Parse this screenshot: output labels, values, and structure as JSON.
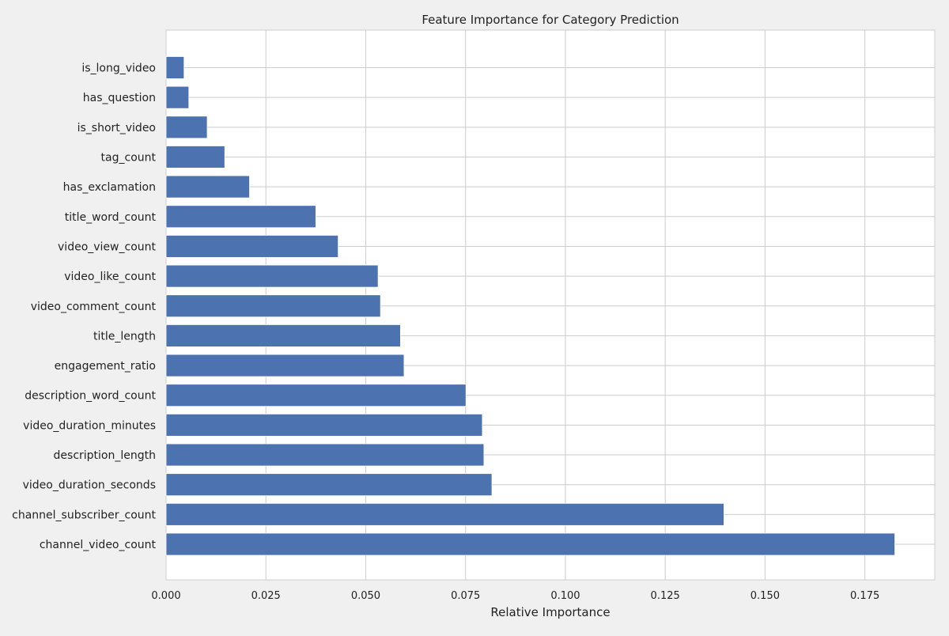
{
  "chart_data": {
    "type": "bar",
    "orientation": "horizontal",
    "title": "Feature Importance for Category Prediction",
    "xlabel": "Relative Importance",
    "ylabel": "",
    "xlim": [
      0,
      0.1925
    ],
    "x_ticks": [
      "0.000",
      "0.025",
      "0.050",
      "0.075",
      "0.100",
      "0.125",
      "0.150",
      "0.175"
    ],
    "grid": true,
    "legend": "none",
    "colors": {
      "bar": "#4c72b0",
      "grid": "#cccccc",
      "plot_bg": "#ffffff",
      "page_bg": "#f0f0f0"
    },
    "categories": [
      "is_long_video",
      "has_question",
      "is_short_video",
      "tag_count",
      "has_exclamation",
      "title_word_count",
      "video_view_count",
      "video_like_count",
      "video_comment_count",
      "title_length",
      "engagement_ratio",
      "description_word_count",
      "video_duration_minutes",
      "description_length",
      "video_duration_seconds",
      "channel_subscriber_count",
      "channel_video_count"
    ],
    "values": [
      0.0045,
      0.0057,
      0.0103,
      0.0147,
      0.0209,
      0.0375,
      0.0431,
      0.0531,
      0.0537,
      0.0587,
      0.0596,
      0.0751,
      0.0792,
      0.0796,
      0.0816,
      0.1397,
      0.1825
    ]
  }
}
